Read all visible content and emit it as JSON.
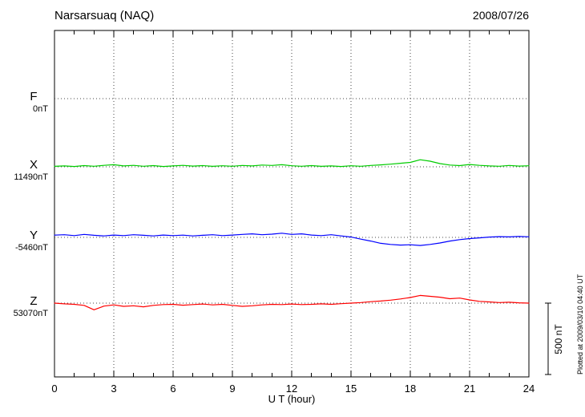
{
  "header": {
    "station": "Narsarsuaq (NAQ)",
    "date": "2008/07/26"
  },
  "footer_note": "Plotted at 2009/03/10 04:40 UT",
  "chart_data": {
    "type": "line",
    "title": "Narsarsuaq (NAQ)",
    "subtitle": "2008/07/26",
    "xlabel": "U T (hour)",
    "ylabel": "",
    "units": "nT",
    "x_range": [
      0,
      24
    ],
    "x_ticks": [
      0,
      3,
      6,
      9,
      12,
      15,
      18,
      21,
      24
    ],
    "grid": "dotted",
    "scale_bar": {
      "label": "500 nT",
      "nT": 500
    },
    "x": [
      0,
      0.5,
      1,
      1.5,
      2,
      2.5,
      3,
      3.5,
      4,
      4.5,
      5,
      5.5,
      6,
      6.5,
      7,
      7.5,
      8,
      8.5,
      9,
      9.5,
      10,
      10.5,
      11,
      11.5,
      12,
      12.5,
      13,
      13.5,
      14,
      14.5,
      15,
      15.5,
      16,
      16.5,
      17,
      17.5,
      18,
      18.5,
      19,
      19.5,
      20,
      20.5,
      21,
      21.5,
      22,
      22.5,
      23,
      23.5,
      24
    ],
    "series": [
      {
        "name": "F",
        "baseline_label": "0nT",
        "baseline_value": 0,
        "color": "#FFA500",
        "offsets_nT": []
      },
      {
        "name": "X",
        "baseline_label": "11490nT",
        "baseline_value": 11490,
        "color": "#00CC00",
        "offsets_nT": [
          3,
          6,
          2,
          8,
          4,
          10,
          14,
          6,
          10,
          4,
          8,
          2,
          6,
          10,
          5,
          8,
          3,
          7,
          4,
          9,
          6,
          12,
          9,
          14,
          7,
          4,
          8,
          3,
          6,
          2,
          7,
          4,
          9,
          13,
          18,
          24,
          30,
          48,
          38,
          22,
          12,
          8,
          16,
          10,
          6,
          4,
          9,
          5,
          7
        ]
      },
      {
        "name": "Y",
        "baseline_label": "-5460nT",
        "baseline_value": -5460,
        "color": "#0000FF",
        "offsets_nT": [
          15,
          18,
          12,
          20,
          14,
          10,
          16,
          12,
          18,
          14,
          10,
          16,
          12,
          15,
          10,
          14,
          18,
          12,
          16,
          20,
          24,
          18,
          22,
          28,
          20,
          24,
          16,
          12,
          18,
          10,
          2,
          -12,
          -25,
          -40,
          -48,
          -52,
          -50,
          -55,
          -48,
          -38,
          -25,
          -15,
          -8,
          -3,
          2,
          5,
          3,
          6,
          4
        ]
      },
      {
        "name": "Z",
        "baseline_label": "53070nT",
        "baseline_value": 53070,
        "color": "#FF0000",
        "offsets_nT": [
          0,
          -5,
          -8,
          -15,
          -45,
          -20,
          -12,
          -22,
          -18,
          -25,
          -15,
          -10,
          -8,
          -14,
          -10,
          -6,
          -12,
          -8,
          -15,
          -22,
          -18,
          -12,
          -8,
          -10,
          -6,
          -10,
          -8,
          -5,
          -8,
          -4,
          0,
          4,
          10,
          14,
          20,
          28,
          38,
          52,
          46,
          40,
          30,
          34,
          22,
          12,
          8,
          4,
          6,
          2,
          0
        ]
      }
    ]
  }
}
